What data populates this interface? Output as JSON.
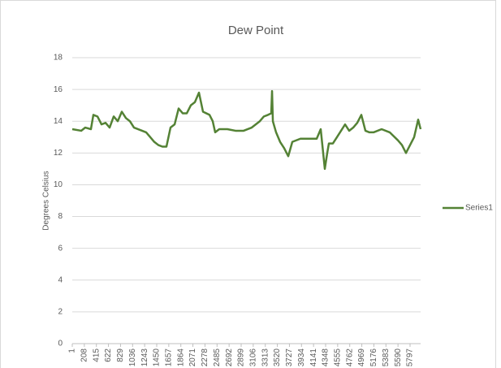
{
  "chart_data": {
    "type": "line",
    "title": "Dew Point",
    "y_label": "Degrees Celsius",
    "x": [
      1,
      154,
      224,
      321,
      363,
      433,
      503,
      572,
      642,
      712,
      781,
      851,
      921,
      990,
      1060,
      1199,
      1269,
      1339,
      1408,
      1478,
      1548,
      1617,
      1687,
      1757,
      1826,
      1896,
      1966,
      2035,
      2105,
      2175,
      2244,
      2356,
      2411,
      2453,
      2523,
      2662,
      2801,
      2941,
      3080,
      3219,
      3289,
      3359,
      3415,
      3429,
      3443,
      3498,
      3567,
      3637,
      3707,
      3777,
      3916,
      4055,
      4195,
      4264,
      4334,
      4376,
      4404,
      4473,
      4543,
      4613,
      4682,
      4752,
      4822,
      4891,
      4961,
      5031,
      5100,
      5170,
      5309,
      5448,
      5588,
      5658,
      5727,
      5797,
      5867,
      5936,
      5978
    ],
    "series": [
      {
        "name": "Series1",
        "color": "#548235",
        "values": [
          13.5,
          13.4,
          13.6,
          13.5,
          14.4,
          14.3,
          13.8,
          13.9,
          13.6,
          14.3,
          14.0,
          14.6,
          14.2,
          14.0,
          13.6,
          13.4,
          13.3,
          13.0,
          12.7,
          12.5,
          12.4,
          12.4,
          13.6,
          13.8,
          14.8,
          14.5,
          14.5,
          15.0,
          15.2,
          15.8,
          14.6,
          14.4,
          14.0,
          13.3,
          13.5,
          13.5,
          13.4,
          13.4,
          13.6,
          14.0,
          14.3,
          14.4,
          14.5,
          15.9,
          14.0,
          13.3,
          12.7,
          12.3,
          11.8,
          12.7,
          12.9,
          12.9,
          12.9,
          13.5,
          11.0,
          12.0,
          12.6,
          12.6,
          13.0,
          13.4,
          13.8,
          13.4,
          13.6,
          13.9,
          14.4,
          13.4,
          13.3,
          13.3,
          13.5,
          13.3,
          12.8,
          12.5,
          12.0,
          12.5,
          13.0,
          14.1,
          13.5
        ]
      }
    ],
    "xlim": [
      1,
      5978
    ],
    "xticks": [
      1,
      208,
      415,
      622,
      829,
      1036,
      1243,
      1450,
      1657,
      1864,
      2071,
      2278,
      2485,
      2692,
      2899,
      3106,
      3313,
      3520,
      3727,
      3934,
      4141,
      4348,
      4555,
      4762,
      4969,
      5176,
      5383,
      5590,
      5797
    ],
    "ylim": [
      0,
      18
    ],
    "yticks": [
      0,
      2,
      4,
      6,
      8,
      10,
      12,
      14,
      16,
      18
    ],
    "grid": true,
    "legend": "right"
  }
}
